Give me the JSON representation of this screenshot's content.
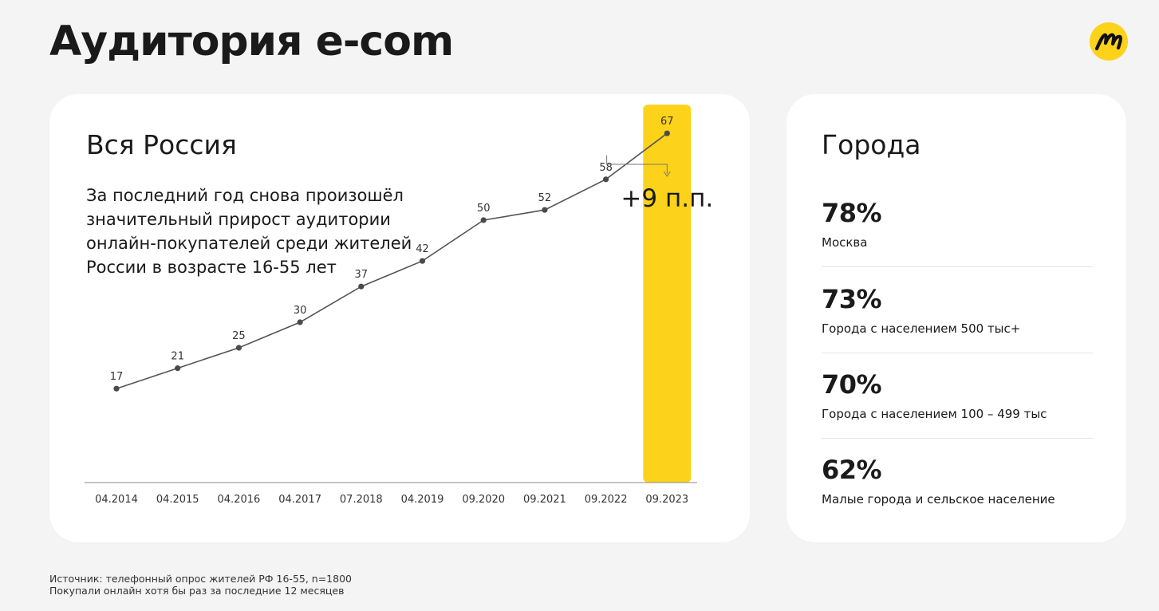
{
  "page": {
    "title": "Аудитория e-com"
  },
  "left_card": {
    "title": "Вся Россия",
    "description": "За последний год снова произошёл значительный прирост аудитории онлайн-покупателей среди жителей России в возрасте 16-55 лет",
    "delta_label": "+9 п.п."
  },
  "chart_data": {
    "type": "line",
    "categories": [
      "04.2014",
      "04.2015",
      "04.2016",
      "04.2017",
      "07.2018",
      "04.2019",
      "09.2020",
      "09.2021",
      "09.2022",
      "09.2023"
    ],
    "values": [
      17,
      21,
      25,
      30,
      37,
      42,
      50,
      52,
      58,
      67
    ],
    "highlight": {
      "category": "09.2023",
      "color": "#fcd21a"
    },
    "annotation": "+9 п.п.",
    "title": "",
    "xlabel": "",
    "ylabel": "",
    "grid": false,
    "line_color": "#555555"
  },
  "right_card": {
    "title": "Города",
    "metrics": [
      {
        "value": "78%",
        "label": "Москва"
      },
      {
        "value": "73%",
        "label": "Города с населением 500 тыс+"
      },
      {
        "value": "70%",
        "label": "Города с населением 100 – 499 тыс"
      },
      {
        "value": "62%",
        "label": "Малые города и сельское население"
      }
    ]
  },
  "footnote": {
    "line1": "Источник: телефонный опрос жителей РФ 16-55, n=1800",
    "line2": "Покупали онлайн хотя бы раз за последние 12 месяцев"
  },
  "colors": {
    "accent": "#fcd21a",
    "background": "#f4f4f4",
    "card": "#ffffff"
  },
  "logo": {
    "icon": "brand-logo-icon"
  }
}
